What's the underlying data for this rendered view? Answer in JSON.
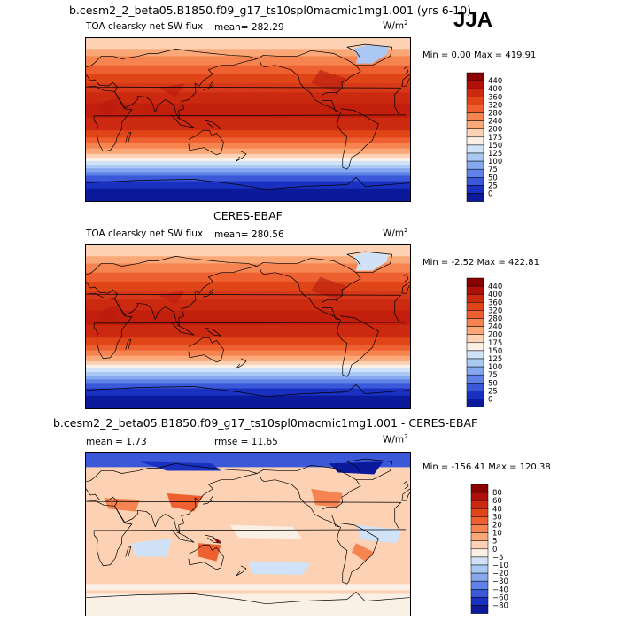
{
  "header": {
    "title": "b.cesm2_2_beta05.B1850.f09_g17_ts10spl0macmic1mg1.001 (yrs 6-10)",
    "season": "JJA"
  },
  "panels": [
    {
      "title": "",
      "variable": "TOA clearsky net SW flux",
      "mean_text": "mean= 282.29",
      "rmse_text": "",
      "units": "W/m",
      "units_sup": "2",
      "min_text": "Min =   0.00",
      "max_text": "Max = 419.91",
      "colorbar": {
        "labels": [
          "440",
          "400",
          "360",
          "320",
          "280",
          "240",
          "200",
          "175",
          "150",
          "125",
          "100",
          "75",
          "50",
          "25",
          "0"
        ],
        "colors": [
          "#8b0000",
          "#b00f0c",
          "#cc2a10",
          "#e04518",
          "#ee6030",
          "#f68450",
          "#faa878",
          "#fdd2b4",
          "#fbf0e6",
          "#cfe2f8",
          "#aac8f4",
          "#86a8ee",
          "#5f82e6",
          "#3a58d8",
          "#1a30c0",
          "#0a1a9a"
        ]
      },
      "field_type": "sw"
    },
    {
      "title": "CERES-EBAF",
      "variable": "TOA clearsky net SW flux",
      "mean_text": "mean= 280.56",
      "rmse_text": "",
      "units": "W/m",
      "units_sup": "2",
      "min_text": "Min =  -2.52",
      "max_text": "Max = 422.81",
      "colorbar": {
        "labels": [
          "440",
          "400",
          "360",
          "320",
          "280",
          "240",
          "200",
          "175",
          "150",
          "125",
          "100",
          "75",
          "50",
          "25",
          "0"
        ],
        "colors": [
          "#8b0000",
          "#b00f0c",
          "#cc2a10",
          "#e04518",
          "#ee6030",
          "#f68450",
          "#faa878",
          "#fdd2b4",
          "#fbf0e6",
          "#cfe2f8",
          "#aac8f4",
          "#86a8ee",
          "#5f82e6",
          "#3a58d8",
          "#1a30c0",
          "#0a1a9a"
        ]
      },
      "field_type": "sw"
    },
    {
      "title": "b.cesm2_2_beta05.B1850.f09_g17_ts10spl0macmic1mg1.001 - CERES-EBAF",
      "variable": "",
      "mean_text": "mean =   1.73",
      "rmse_text": "rmse =  11.65",
      "units": "W/m",
      "units_sup": "2",
      "min_text": "Min = -156.41",
      "max_text": "Max = 120.38",
      "colorbar": {
        "labels": [
          "80",
          "60",
          "40",
          "30",
          "20",
          "10",
          "5",
          "0",
          "−5",
          "−10",
          "−20",
          "−30",
          "−40",
          "−60",
          "−80"
        ],
        "colors": [
          "#8b0000",
          "#b00f0c",
          "#cc2a10",
          "#e04518",
          "#ee6030",
          "#f68450",
          "#faa878",
          "#fdd2b4",
          "#fbf0e6",
          "#cfe2f8",
          "#aac8f4",
          "#86a8ee",
          "#5f82e6",
          "#3a58d8",
          "#1a30c0",
          "#0a1a9a"
        ]
      },
      "field_type": "diff"
    }
  ]
}
